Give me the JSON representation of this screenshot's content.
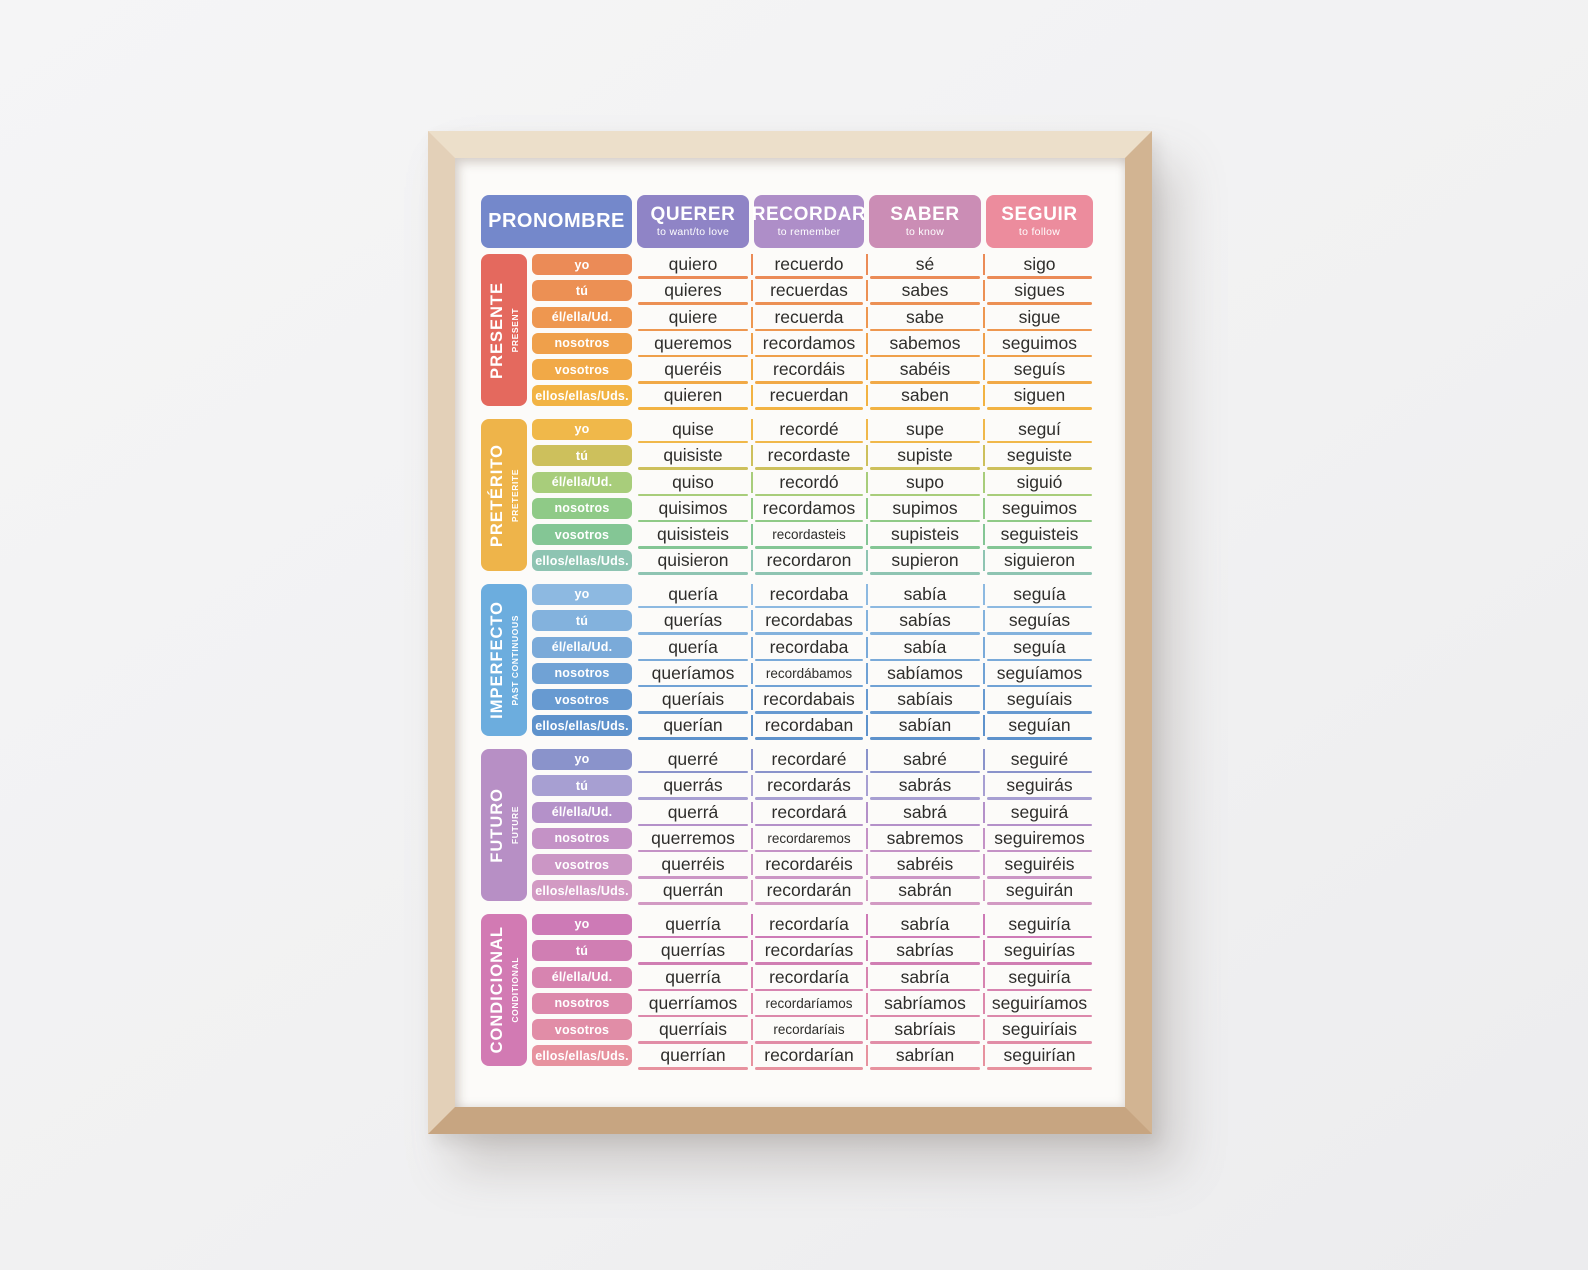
{
  "header": {
    "pronoun_label": "PRONOMBRE",
    "pronoun_color": "#7488cb",
    "verbs": [
      {
        "name": "QUERER",
        "translation": "to want/to love",
        "color": "#8f84c6"
      },
      {
        "name": "RECORDAR",
        "translation": "to remember",
        "color": "#ae8ec8"
      },
      {
        "name": "SABER",
        "translation": "to know",
        "color": "#cb8db5"
      },
      {
        "name": "SEGUIR",
        "translation": "to follow",
        "color": "#ec8c9d"
      }
    ]
  },
  "sections": [
    {
      "tense": "PRESENTE",
      "tense_en": "PRESENT",
      "color": "#e4695e",
      "rows": [
        {
          "pronoun": "yo",
          "color": "#eb8b57",
          "forms": [
            "quiero",
            "recuerdo",
            "sé",
            "sigo"
          ]
        },
        {
          "pronoun": "tú",
          "color": "#ec9054",
          "forms": [
            "quieres",
            "recuerdas",
            "sabes",
            "sigues"
          ]
        },
        {
          "pronoun": "él/ella/Ud.",
          "color": "#ee9750",
          "forms": [
            "quiere",
            "recuerda",
            "sabe",
            "sigue"
          ]
        },
        {
          "pronoun": "nosotros",
          "color": "#efa04b",
          "forms": [
            "queremos",
            "recordamos",
            "sabemos",
            "seguimos"
          ]
        },
        {
          "pronoun": "vosotros",
          "color": "#f1a947",
          "forms": [
            "queréis",
            "recordáis",
            "sabéis",
            "seguís"
          ]
        },
        {
          "pronoun": "ellos/ellas/Uds.",
          "color": "#f2b343",
          "forms": [
            "quieren",
            "recuerdan",
            "saben",
            "siguen"
          ]
        }
      ]
    },
    {
      "tense": "PRETÉRITO",
      "tense_en": "PRETERITE",
      "color": "#eeb44a",
      "rows": [
        {
          "pronoun": "yo",
          "color": "#f0b84a",
          "forms": [
            "quise",
            "recordé",
            "supe",
            "seguí"
          ]
        },
        {
          "pronoun": "tú",
          "color": "#cdc05c",
          "forms": [
            "quisiste",
            "recordaste",
            "supiste",
            "seguiste"
          ]
        },
        {
          "pronoun": "él/ella/Ud.",
          "color": "#a8cd7b",
          "forms": [
            "quiso",
            "recordó",
            "supo",
            "siguió"
          ]
        },
        {
          "pronoun": "nosotros",
          "color": "#8fca87",
          "forms": [
            "quisimos",
            "recordamos",
            "supimos",
            "seguimos"
          ]
        },
        {
          "pronoun": "vosotros",
          "color": "#84c695",
          "forms": [
            "quisisteis",
            "recordasteis",
            "supisteis",
            "seguisteis"
          ]
        },
        {
          "pronoun": "ellos/ellas/Uds.",
          "color": "#8ec4b2",
          "forms": [
            "quisieron",
            "recordaron",
            "supieron",
            "siguieron"
          ]
        }
      ]
    },
    {
      "tense": "IMPERFECTO",
      "tense_en": "PAST CONTINUOUS",
      "color": "#6cadde",
      "rows": [
        {
          "pronoun": "yo",
          "color": "#8db9e1",
          "forms": [
            "quería",
            "recordaba",
            "sabía",
            "seguía"
          ]
        },
        {
          "pronoun": "tú",
          "color": "#83b2dd",
          "forms": [
            "querías",
            "recordabas",
            "sabías",
            "seguías"
          ]
        },
        {
          "pronoun": "él/ella/Ud.",
          "color": "#7aaad9",
          "forms": [
            "quería",
            "recordaba",
            "sabía",
            "seguía"
          ]
        },
        {
          "pronoun": "nosotros",
          "color": "#70a2d5",
          "forms": [
            "queríamos",
            "recordábamos",
            "sabíamos",
            "seguíamos"
          ]
        },
        {
          "pronoun": "vosotros",
          "color": "#679ad1",
          "forms": [
            "queríais",
            "recordabais",
            "sabíais",
            "seguíais"
          ]
        },
        {
          "pronoun": "ellos/ellas/Uds.",
          "color": "#5e92cc",
          "forms": [
            "querían",
            "recordaban",
            "sabían",
            "seguían"
          ]
        }
      ]
    },
    {
      "tense": "FUTURO",
      "tense_en": "FUTURE",
      "color": "#b78fc5",
      "rows": [
        {
          "pronoun": "yo",
          "color": "#8a93cb",
          "forms": [
            "querré",
            "recordaré",
            "sabré",
            "seguiré"
          ]
        },
        {
          "pronoun": "tú",
          "color": "#a79fd2",
          "forms": [
            "querrás",
            "recordarás",
            "sabrás",
            "seguirás"
          ]
        },
        {
          "pronoun": "él/ella/Ud.",
          "color": "#b491c9",
          "forms": [
            "querrá",
            "recordará",
            "sabrá",
            "seguirá"
          ]
        },
        {
          "pronoun": "nosotros",
          "color": "#c492c6",
          "forms": [
            "querremos",
            "recordaremos",
            "sabremos",
            "seguiremos"
          ]
        },
        {
          "pronoun": "vosotros",
          "color": "#cb96c5",
          "forms": [
            "querréis",
            "recordaréis",
            "sabréis",
            "seguiréis"
          ]
        },
        {
          "pronoun": "ellos/ellas/Uds.",
          "color": "#d29ac3",
          "forms": [
            "querrán",
            "recordarán",
            "sabrán",
            "seguirán"
          ]
        }
      ]
    },
    {
      "tense": "CONDICIONAL",
      "tense_en": "CONDITIONAL",
      "color": "#d27ab3",
      "rows": [
        {
          "pronoun": "yo",
          "color": "#cd7ab6",
          "forms": [
            "querría",
            "recordaría",
            "sabría",
            "seguiría"
          ]
        },
        {
          "pronoun": "tú",
          "color": "#d07eb3",
          "forms": [
            "querrías",
            "recordarías",
            "sabrías",
            "seguirías"
          ]
        },
        {
          "pronoun": "él/ella/Ud.",
          "color": "#d784b0",
          "forms": [
            "querría",
            "recordaría",
            "sabría",
            "seguiría"
          ]
        },
        {
          "pronoun": "nosotros",
          "color": "#dc88ab",
          "forms": [
            "querríamos",
            "recordaríamos",
            "sabríamos",
            "seguiríamos"
          ]
        },
        {
          "pronoun": "vosotros",
          "color": "#e18da7",
          "forms": [
            "querríais",
            "recordaríais",
            "sabríais",
            "seguiríais"
          ]
        },
        {
          "pronoun": "ellos/ellas/Uds.",
          "color": "#e7929f",
          "forms": [
            "querrían",
            "recordarían",
            "sabrían",
            "seguirían"
          ]
        }
      ]
    }
  ]
}
